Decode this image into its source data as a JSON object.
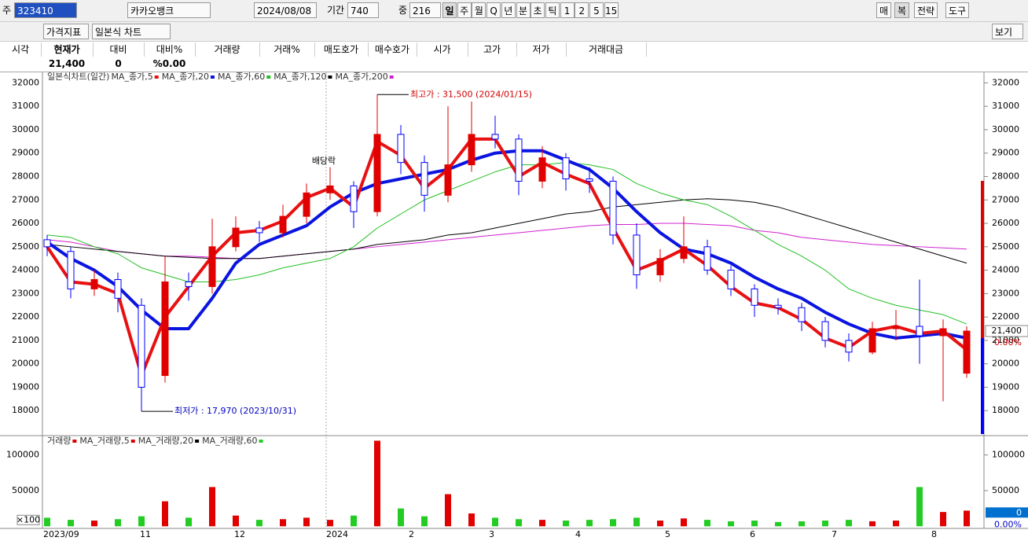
{
  "toolbar": {
    "code_label": "주",
    "code": "323410",
    "name": "카카오뱅크",
    "date": "2024/08/08",
    "period_label": "기간",
    "period": "740",
    "mid_label": "중",
    "mid": "216",
    "periods": [
      "일",
      "주",
      "월",
      "Q",
      "년",
      "분",
      "초",
      "틱",
      "1",
      "2",
      "5",
      "15"
    ],
    "right_buttons": [
      "매",
      "복",
      "전략",
      "도구"
    ],
    "indicator": "가격지표",
    "chart_kind": "일본식 차트",
    "view": "보기"
  },
  "quote": {
    "columns": [
      "시각",
      "현재가",
      "대비",
      "대비%",
      "거래량",
      "거래%",
      "매도호가",
      "매수호가",
      "시가",
      "고가",
      "저가",
      "거래대금"
    ],
    "values": [
      "21,400",
      "0",
      "%0.00"
    ]
  },
  "chart_data": [
    {
      "type": "candlestick",
      "title": "일본식차트(일간)",
      "open": [
        25300,
        24800,
        23200,
        23600,
        22500,
        19500,
        23500,
        23300,
        25000,
        25800,
        25600,
        26300,
        27300,
        27600,
        26500,
        29800,
        28600,
        27200,
        28500,
        29800,
        29600,
        27800,
        28800,
        27900,
        27800,
        25500,
        23800,
        24500,
        25000,
        24000,
        23200,
        22500,
        22400,
        21800,
        21000,
        20500,
        21500,
        21600,
        21200,
        19600
      ],
      "high": [
        25500,
        25000,
        24000,
        23900,
        22800,
        24600,
        23900,
        26200,
        26300,
        26100,
        26800,
        27700,
        28400,
        27800,
        31500,
        30200,
        28900,
        31000,
        31200,
        30600,
        29800,
        29300,
        29000,
        28400,
        28000,
        26000,
        24900,
        26300,
        25300,
        24200,
        23400,
        22800,
        22600,
        22000,
        21300,
        21800,
        22300,
        23600,
        21900,
        21600
      ],
      "low": [
        24600,
        22800,
        22900,
        22200,
        17970,
        19200,
        22700,
        23000,
        24800,
        25200,
        25400,
        26000,
        27000,
        25800,
        26300,
        28100,
        26500,
        26900,
        28200,
        29200,
        27200,
        27500,
        27400,
        27300,
        25100,
        23200,
        23500,
        24300,
        23800,
        22900,
        22000,
        22100,
        21400,
        20700,
        20100,
        20400,
        21000,
        20000,
        18400,
        19400
      ],
      "close": [
        25000,
        23200,
        23600,
        22800,
        19000,
        23500,
        23300,
        25000,
        25800,
        25600,
        26300,
        27300,
        27600,
        26500,
        29800,
        28600,
        27200,
        28500,
        29800,
        29600,
        27800,
        28800,
        27900,
        27800,
        25500,
        23800,
        24500,
        25000,
        24000,
        23200,
        22500,
        22400,
        21800,
        21000,
        20500,
        21500,
        21600,
        21200,
        21500,
        21400
      ],
      "up_color": "#e00000",
      "down_color": "#0000ff",
      "series": [
        {
          "name": "MA_종가,5",
          "color": "#e81010",
          "width": 4,
          "values": [
            25000,
            23500,
            23400,
            23000,
            19500,
            22000,
            23300,
            24600,
            25600,
            25700,
            26100,
            27100,
            27500,
            26700,
            29500,
            28900,
            27500,
            28300,
            29600,
            29600,
            28000,
            28600,
            28100,
            27700,
            25800,
            24000,
            24400,
            24900,
            24200,
            23300,
            22600,
            22400,
            21900,
            21100,
            20700,
            21400,
            21600,
            21300,
            21400,
            20600
          ]
        },
        {
          "name": "MA_종가,20",
          "color": "#0a14e0",
          "width": 4,
          "values": [
            25200,
            24500,
            24000,
            23300,
            22300,
            21500,
            21500,
            22800,
            24300,
            25100,
            25500,
            25900,
            26700,
            27300,
            27700,
            27900,
            28100,
            28300,
            28700,
            29000,
            29100,
            29100,
            28700,
            28300,
            27500,
            26500,
            25600,
            24900,
            24700,
            24300,
            23700,
            23200,
            22800,
            22200,
            21700,
            21300,
            21100,
            21200,
            21300,
            21100
          ]
        },
        {
          "name": "MA_종가,60",
          "color": "#22c022",
          "width": 1,
          "values": [
            25500,
            25400,
            25000,
            24700,
            24100,
            23800,
            23500,
            23500,
            23600,
            23800,
            24100,
            24300,
            24500,
            25000,
            25800,
            26400,
            27000,
            27400,
            27800,
            28200,
            28500,
            28500,
            28600,
            28500,
            28300,
            27700,
            27300,
            27000,
            26800,
            26300,
            25700,
            25100,
            24600,
            24000,
            23200,
            22800,
            22500,
            22300,
            22100,
            21700
          ]
        },
        {
          "name": "MA_종가,120",
          "color": "#000000",
          "width": 1,
          "values": [
            25100,
            25000,
            24900,
            24800,
            24700,
            24600,
            24550,
            24500,
            24500,
            24500,
            24600,
            24700,
            24800,
            24900,
            25100,
            25200,
            25300,
            25500,
            25600,
            25800,
            26000,
            26200,
            26400,
            26500,
            26700,
            26800,
            26900,
            27000,
            27050,
            27000,
            26900,
            26700,
            26400,
            26100,
            25800,
            25500,
            25200,
            24900,
            24600,
            24300
          ]
        },
        {
          "name": "MA_종가,200",
          "color": "#d020d0",
          "width": 1,
          "values": [
            25300,
            25200,
            25000,
            24800,
            24700,
            24600,
            24600,
            24550,
            24500,
            24500,
            24600,
            24700,
            24800,
            24900,
            25000,
            25100,
            25200,
            25300,
            25400,
            25500,
            25600,
            25700,
            25800,
            25900,
            25950,
            25950,
            26000,
            26000,
            25950,
            25900,
            25700,
            25600,
            25400,
            25300,
            25200,
            25100,
            25050,
            25000,
            24950,
            24900
          ]
        }
      ],
      "ylim": [
        17000,
        32450
      ],
      "yticks": [
        18000,
        19000,
        20000,
        21000,
        22000,
        23000,
        24000,
        25000,
        26000,
        27000,
        28000,
        29000,
        30000,
        31000,
        32000
      ],
      "x_labels": [
        "2023/09",
        "11",
        "12",
        "2024",
        "2",
        "3",
        "4",
        "5",
        "6",
        "7",
        "8"
      ],
      "annotations": [
        {
          "text": "최고가 : 31,500 (2024/01/15)",
          "color": "#d00000"
        },
        {
          "text": "최저가 : 17,970 (2023/10/31)",
          "color": "#0000c0"
        },
        {
          "text": "배당락",
          "color": "#000000"
        }
      ],
      "current_label": "21,400",
      "change_label": "0.00%"
    },
    {
      "type": "bar",
      "title": "거래량",
      "values": [
        12000,
        9000,
        8000,
        10000,
        14000,
        35000,
        12000,
        55000,
        15000,
        9000,
        10000,
        12000,
        9000,
        15000,
        120000,
        25000,
        14000,
        45000,
        18000,
        12000,
        10000,
        9000,
        8000,
        9000,
        10000,
        12000,
        8000,
        11000,
        9000,
        7000,
        8000,
        6000,
        7000,
        8000,
        9000,
        7000,
        8000,
        55000,
        20000,
        22000
      ],
      "up_color": "#e00000",
      "down_color": "#22cc22",
      "legend": [
        {
          "name": "MA_거래량,5",
          "color": "#e00000"
        },
        {
          "name": "MA_거래량,20",
          "color": "#000000"
        },
        {
          "name": "MA_거래량,60",
          "color": "#22cc22"
        }
      ],
      "ylim": [
        -3000,
        126000
      ],
      "yticks": [
        50000,
        100000
      ],
      "unit_label": "×100",
      "current_label": "0",
      "change_label": "0.00%"
    }
  ]
}
